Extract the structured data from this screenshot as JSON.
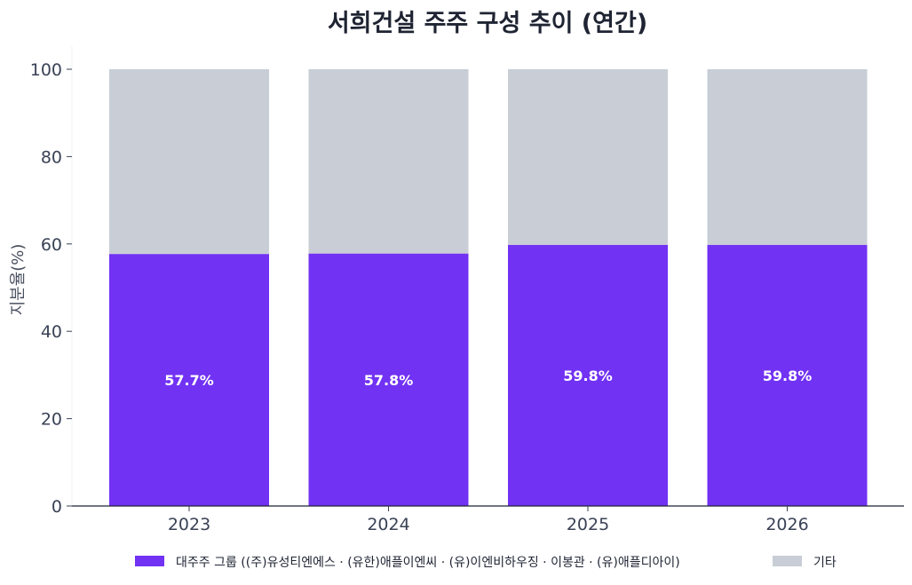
{
  "chart_data": {
    "type": "bar",
    "stacked": true,
    "title": "서희건설 주주 구성 추이 (연간)",
    "ylabel": "지분율(%)",
    "xlabel": "",
    "categories": [
      "2023",
      "2024",
      "2025",
      "2026"
    ],
    "ylim": [
      0,
      100
    ],
    "yticks": [
      "0",
      "20",
      "40",
      "60",
      "80",
      "100"
    ],
    "series": [
      {
        "name": "대주주 그룹 ((주)유성티엔에스 · (유한)애플이엔씨 · (유)이엔비하우징 · 이봉관 · (유)애플디아이)",
        "values": [
          57.7,
          57.8,
          59.8,
          59.8
        ],
        "labels": [
          "57.7%",
          "57.8%",
          "59.8%",
          "59.8%"
        ],
        "color": "#7132f3"
      },
      {
        "name": "기타",
        "values": [
          42.3,
          42.2,
          40.2,
          40.2
        ],
        "color": "#c8cdd6"
      }
    ],
    "grid": false,
    "legend_position": "bottom"
  }
}
